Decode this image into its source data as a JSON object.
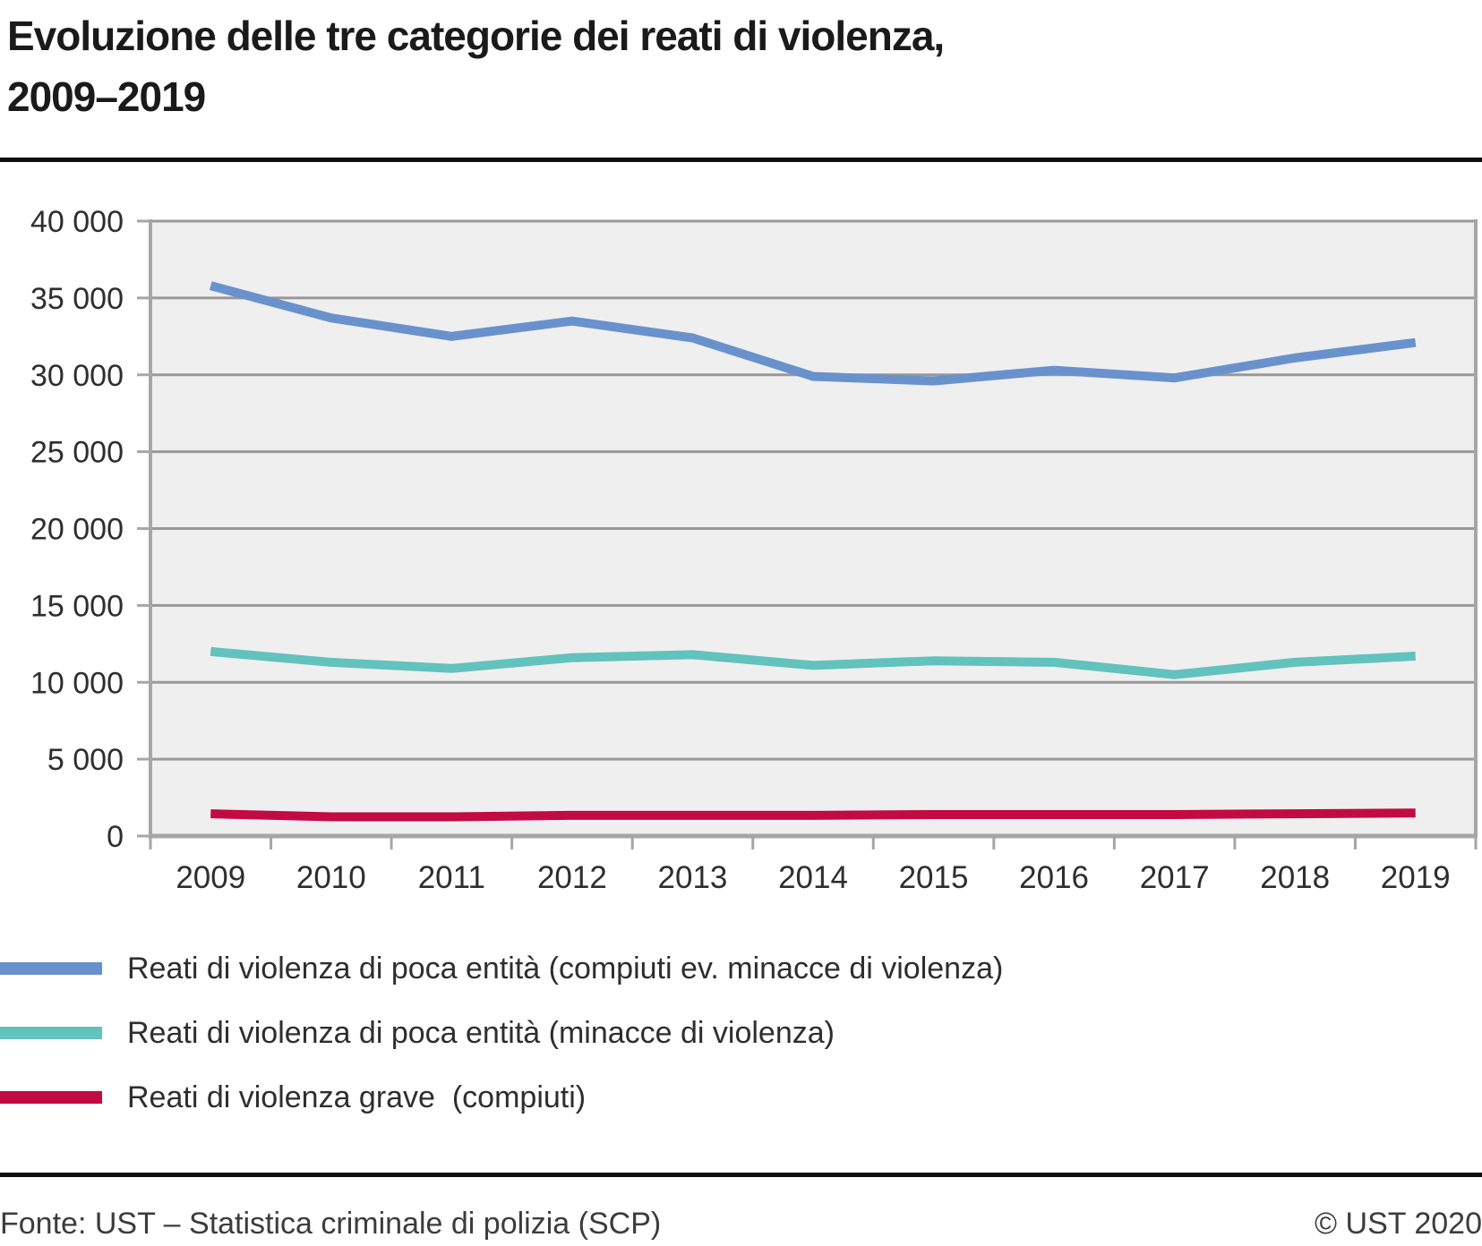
{
  "header": {
    "title_lines": [
      "Evoluzione delle tre categorie dei reati di violenza,",
      "2009–2019"
    ]
  },
  "chart_data": {
    "type": "line",
    "title": "Evoluzione delle tre categorie dei reati di violenza, 2009–2019",
    "categories": [
      "2009",
      "2010",
      "2011",
      "2012",
      "2013",
      "2014",
      "2015",
      "2016",
      "2017",
      "2018",
      "2019"
    ],
    "series": [
      {
        "name": "Reati di violenza di poca entità (compiuti ev. minacce di violenza)",
        "color": "#6992cd",
        "values": [
          35800,
          33700,
          32500,
          33500,
          32400,
          29900,
          29600,
          30300,
          29800,
          31100,
          32100
        ]
      },
      {
        "name": "Reati di violenza di poca entità (minacce di violenza)",
        "color": "#62c2bd",
        "values": [
          12000,
          11300,
          10900,
          11600,
          11800,
          11100,
          11400,
          11300,
          10500,
          11300,
          11700
        ]
      },
      {
        "name": "Reati di violenza grave  (compiuti)",
        "color": "#c20a43",
        "values": [
          1450,
          1250,
          1250,
          1350,
          1350,
          1350,
          1400,
          1400,
          1400,
          1450,
          1500
        ]
      }
    ],
    "ylim": [
      0,
      40000
    ],
    "ytick_step": 5000,
    "ytick_labels": [
      "0",
      "5 000",
      "10 000",
      "15 000",
      "20 000",
      "25 000",
      "30 000",
      "35 000",
      "40 000"
    ],
    "grid": "horizontal",
    "legend_position": "bottom-left",
    "plot_background": "#efefef",
    "grid_color": "#999999",
    "axis_color": "#a6a6a6"
  },
  "footer": {
    "source": "Fonte: UST – Statistica criminale di polizia (SCP)",
    "copyright": "© UST 2020"
  }
}
